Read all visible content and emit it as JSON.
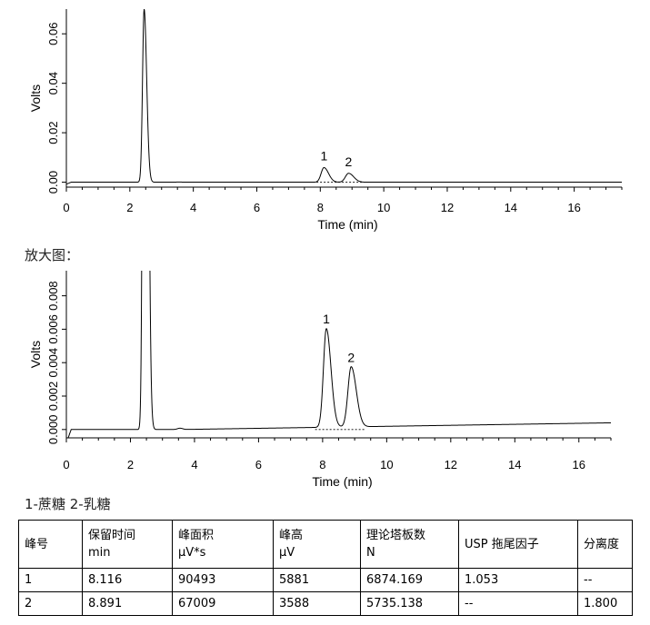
{
  "chart_data": [
    {
      "type": "line",
      "title": "",
      "xlabel": "Time (min)",
      "ylabel": "Volts",
      "xlim": [
        0,
        17.5
      ],
      "ylim": [
        -0.002,
        0.07
      ],
      "xticks": [
        0,
        2,
        4,
        6,
        8,
        10,
        12,
        14,
        16
      ],
      "xtick_labels": [
        "0",
        "2",
        "4",
        "6",
        "8",
        "10",
        "12",
        "14",
        "16"
      ],
      "yticks": [
        0.0,
        0.02,
        0.04,
        0.06
      ],
      "ytick_labels": [
        "0.00",
        "0.02",
        "0.04",
        "0.06"
      ],
      "baseline": 0.0,
      "peaks": [
        {
          "t": 2.45,
          "height": 0.07,
          "width": 0.05
        },
        {
          "t": 8.116,
          "height": 0.0059,
          "width": 0.09,
          "label": "1"
        },
        {
          "t": 8.891,
          "height": 0.0036,
          "width": 0.1,
          "label": "2"
        }
      ],
      "grid": false
    },
    {
      "type": "line",
      "title": "",
      "xlabel": "Time (min)",
      "ylabel": "Volts",
      "xlim": [
        0,
        17.0
      ],
      "ylim": [
        -0.0005,
        0.0095
      ],
      "xticks": [
        0,
        2,
        4,
        6,
        8,
        10,
        12,
        14,
        16
      ],
      "xtick_labels": [
        "0",
        "2",
        "4",
        "6",
        "8",
        "10",
        "12",
        "14",
        "16"
      ],
      "yticks": [
        0.0,
        0.002,
        0.004,
        0.006,
        0.008
      ],
      "ytick_labels": [
        "0.000",
        "0.002",
        "0.004",
        "0.006",
        "0.008"
      ],
      "baseline": 0.0,
      "peaks": [
        {
          "t": 2.45,
          "height": 0.07,
          "width": 0.05
        },
        {
          "t": 8.116,
          "height": 0.0059,
          "width": 0.09,
          "label": "1"
        },
        {
          "t": 8.891,
          "height": 0.0036,
          "width": 0.1,
          "label": "2"
        }
      ],
      "grid": false
    }
  ],
  "zoom_label": "放大图：",
  "legend_label": "1-蔗糖  2-乳糖",
  "table": {
    "header": [
      {
        "line1": "峰号",
        "line2": ""
      },
      {
        "line1": "保留时间",
        "line2": "min"
      },
      {
        "line1": "峰面积",
        "line2": "μV*s"
      },
      {
        "line1": "峰高",
        "line2": "μV"
      },
      {
        "line1": "理论塔板数",
        "line2": "N"
      },
      {
        "line1": "USP 拖尾因子",
        "line2": ""
      },
      {
        "line1": "分离度",
        "line2": ""
      }
    ],
    "rows": [
      [
        "1",
        "8.116",
        "90493",
        "5881",
        "6874.169",
        "1.053",
        "--"
      ],
      [
        "2",
        "8.891",
        "67009",
        "3588",
        "5735.138",
        "--",
        "1.800"
      ]
    ]
  }
}
